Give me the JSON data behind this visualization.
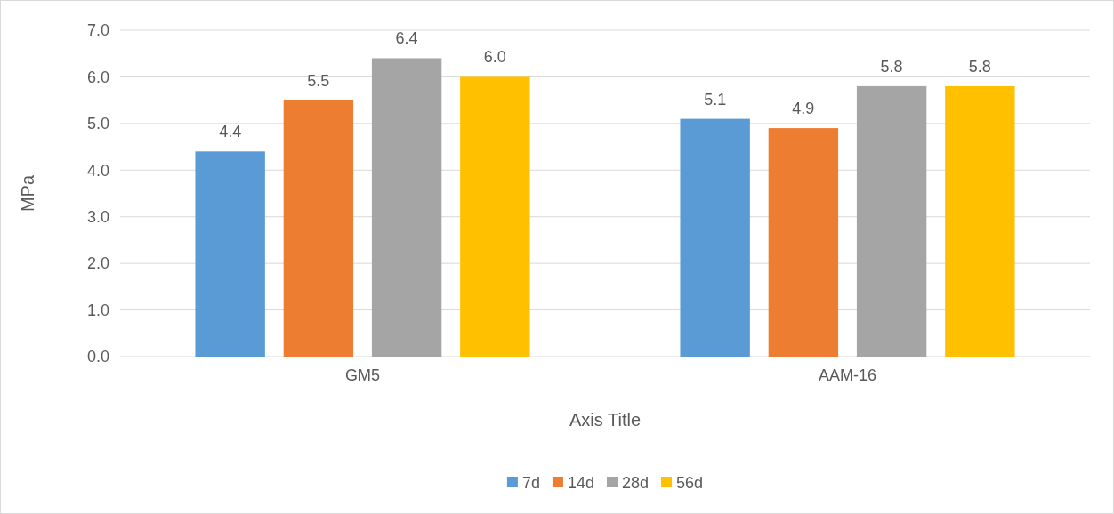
{
  "chart_data": {
    "type": "bar",
    "categories": [
      "GM5",
      "AAM-16"
    ],
    "series": [
      {
        "name": "7d",
        "color": "#5b9bd5",
        "values": [
          4.4,
          5.1
        ],
        "value_labels": [
          "4.4",
          "5.1"
        ]
      },
      {
        "name": "14d",
        "color": "#ed7d31",
        "values": [
          5.5,
          4.9
        ],
        "value_labels": [
          "5.5",
          "4.9"
        ]
      },
      {
        "name": "28d",
        "color": "#a5a5a5",
        "values": [
          6.4,
          5.8
        ],
        "value_labels": [
          "6.4",
          "5.8"
        ]
      },
      {
        "name": "56d",
        "color": "#ffc000",
        "values": [
          6.0,
          5.8
        ],
        "value_labels": [
          "6.0",
          "5.8"
        ]
      }
    ],
    "xlabel": "Axis Title",
    "ylabel": "MPa",
    "ylim": [
      0,
      7
    ],
    "yticks": [
      {
        "value": 0,
        "label": "0.0"
      },
      {
        "value": 1,
        "label": "1.0"
      },
      {
        "value": 2,
        "label": "2.0"
      },
      {
        "value": 3,
        "label": "3.0"
      },
      {
        "value": 4,
        "label": "4.0"
      },
      {
        "value": 5,
        "label": "5.0"
      },
      {
        "value": 6,
        "label": "6.0"
      },
      {
        "value": 7,
        "label": "7.0"
      }
    ],
    "grid": "y",
    "legend": "bottom"
  }
}
